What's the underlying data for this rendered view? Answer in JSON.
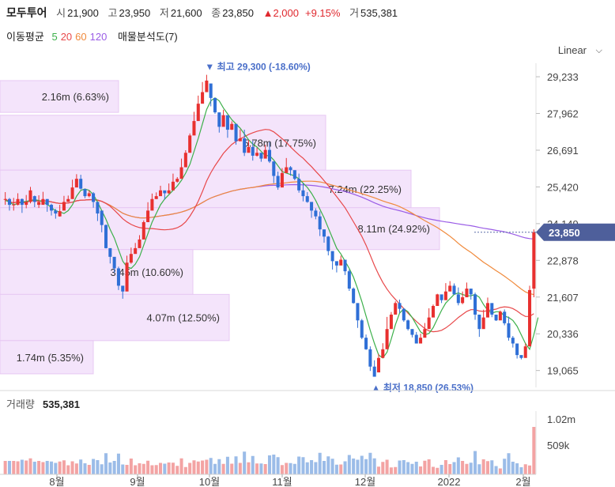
{
  "header": {
    "name": "모두투어",
    "open_label": "시",
    "open": "21,900",
    "high_label": "고",
    "high": "23,950",
    "low_label": "저",
    "low": "21,600",
    "close_label": "종",
    "close": "23,850",
    "change": "▲2,000",
    "change_pct": "+9.15%",
    "volume_label": "거",
    "volume": "535,381"
  },
  "indicators": {
    "label": "이동평균",
    "ma": [
      {
        "period": "5",
        "color": "#3cb04a"
      },
      {
        "period": "20",
        "color": "#e8484a"
      },
      {
        "period": "60",
        "color": "#f08a3c"
      },
      {
        "period": "120",
        "color": "#9a5ce6"
      }
    ],
    "profile_label": "매물분석도(7)"
  },
  "scale_mode": "Linear",
  "chart_data": {
    "type": "candlestick",
    "price_axis": {
      "ticks": [
        "29,233",
        "27,962",
        "26,691",
        "25,420",
        "24,149",
        "22,878",
        "21,607",
        "20,336",
        "19,065"
      ],
      "ylim": [
        18700,
        29700
      ]
    },
    "current_price": "23,850",
    "high_marker": "▼ 최고 29,300 (-18.60%)",
    "low_marker": "▲ 최저 18,850 (26.53%)",
    "volume_profile": [
      {
        "label": "2.16m (6.63%)",
        "price_top": 29100,
        "price_bottom": 28000
      },
      {
        "label": "5.78m (17.75%)",
        "price_top": 27900,
        "price_bottom": 26000
      },
      {
        "label": "7.24m (22.25%)",
        "price_top": 26000,
        "price_bottom": 24700
      },
      {
        "label": "8.11m (24.92%)",
        "price_top": 24700,
        "price_bottom": 23250
      },
      {
        "label": "3.45m (10.60%)",
        "price_top": 23250,
        "price_bottom": 21700
      },
      {
        "label": "4.07m (12.50%)",
        "price_top": 21700,
        "price_bottom": 20100
      },
      {
        "label": "1.74m (5.35%)",
        "price_top": 20100,
        "price_bottom": 18950
      }
    ],
    "volume_panel": {
      "title": "거래량",
      "value": "535,381",
      "ticks": [
        "1.02m",
        "509k"
      ]
    },
    "x_axis_labels": [
      "8월",
      "9월",
      "10월",
      "11월",
      "12월",
      "2022",
      "2월"
    ],
    "candles": [
      [
        25000,
        25000,
        24800,
        25240
      ],
      [
        25000,
        24800,
        24600,
        25040
      ],
      [
        24800,
        24810,
        24600,
        25040
      ],
      [
        24800,
        25000,
        24780,
        25200
      ],
      [
        25000,
        24800,
        24520,
        25020
      ],
      [
        24800,
        24900,
        24680,
        25140
      ],
      [
        24900,
        25300,
        24850,
        25420
      ],
      [
        25100,
        24900,
        24720,
        25120
      ],
      [
        24800,
        24900,
        24690,
        25130
      ],
      [
        24800,
        25000,
        24870,
        25250
      ],
      [
        25000,
        24800,
        24560,
        25000
      ],
      [
        24800,
        24600,
        24430,
        24840
      ],
      [
        24600,
        24500,
        24320,
        24660
      ],
      [
        24400,
        24580,
        24390,
        24800
      ],
      [
        24600,
        24900,
        24640,
        25110
      ],
      [
        24900,
        25000,
        24900,
        25120
      ],
      [
        25000,
        25400,
        25250,
        25670
      ],
      [
        25400,
        25700,
        25550,
        25860
      ],
      [
        25700,
        25360,
        25330,
        25840
      ],
      [
        25350,
        25100,
        25030,
        25350
      ],
      [
        25100,
        25200,
        25060,
        25300
      ],
      [
        25200,
        24900,
        24700,
        25240
      ],
      [
        24900,
        24500,
        24240,
        24720
      ],
      [
        24600,
        24100,
        23850,
        24120
      ],
      [
        24100,
        23300,
        23290,
        24120
      ],
      [
        23300,
        23000,
        22770,
        23130
      ],
      [
        23000,
        22600,
        22450,
        22890
      ],
      [
        22600,
        22000,
        21850,
        22660
      ],
      [
        22000,
        21800,
        21550,
        21810
      ],
      [
        21800,
        22800,
        22800,
        23040
      ],
      [
        22800,
        23100,
        22760,
        23320
      ],
      [
        23100,
        23300,
        23260,
        23480
      ],
      [
        23300,
        23600,
        23430,
        23750
      ],
      [
        23600,
        24200,
        23970,
        24260
      ],
      [
        24200,
        24600,
        24440,
        24890
      ],
      [
        24600,
        25000,
        24970,
        25190
      ],
      [
        25000,
        25100,
        25000,
        25230
      ],
      [
        25100,
        25300,
        25120,
        25460
      ],
      [
        25300,
        25200,
        24980,
        25280
      ],
      [
        25200,
        25300,
        25180,
        25540
      ],
      [
        25300,
        25600,
        25530,
        25880
      ],
      [
        25600,
        25700,
        25570,
        25760
      ],
      [
        25700,
        26100,
        25830,
        26400
      ],
      [
        26100,
        26600,
        26560,
        26690
      ],
      [
        26600,
        27200,
        26930,
        27270
      ],
      [
        27200,
        27700,
        27550,
        28020
      ],
      [
        27700,
        28300,
        28170,
        28580
      ],
      [
        28300,
        28700,
        28590,
        29050
      ],
      [
        28700,
        29100,
        28800,
        29300
      ],
      [
        29000,
        28500,
        28210,
        28800
      ],
      [
        28500,
        28000,
        27950,
        28240
      ],
      [
        28000,
        27500,
        27300,
        27830
      ],
      [
        27500,
        27900,
        27800,
        28090
      ],
      [
        27900,
        27400,
        27120,
        27770
      ],
      [
        27400,
        27600,
        27390,
        27690
      ],
      [
        27600,
        27000,
        26880,
        27550
      ],
      [
        27000,
        27100,
        27070,
        27410
      ],
      [
        27100,
        26600,
        26490,
        27400
      ],
      [
        26600,
        26800,
        26670,
        27040
      ],
      [
        26800,
        26500,
        26330,
        27020
      ],
      [
        26500,
        26600,
        26470,
        26780
      ],
      [
        26600,
        26400,
        26290,
        26600
      ],
      [
        26400,
        26700,
        26600,
        26880
      ],
      [
        26700,
        26300,
        26250,
        26970
      ],
      [
        26300,
        25800,
        25550,
        26310
      ],
      [
        25800,
        25400,
        25320,
        25950
      ],
      [
        25400,
        25900,
        25840,
        26070
      ],
      [
        25900,
        26100,
        26080,
        26420
      ],
      [
        26100,
        26000,
        25810,
        26140
      ],
      [
        26000,
        25700,
        25650,
        25940
      ],
      [
        25700,
        25300,
        25220,
        25880
      ],
      [
        25300,
        25100,
        24920,
        25550
      ],
      [
        25100,
        24900,
        24870,
        25240
      ],
      [
        24900,
        24600,
        24350,
        24830
      ],
      [
        24600,
        24400,
        24300,
        24680
      ],
      [
        24400,
        23950,
        23720,
        24570
      ],
      [
        23950,
        23700,
        23490,
        23930
      ],
      [
        23700,
        23200,
        23050,
        23720
      ],
      [
        23200,
        22850,
        22560,
        23110
      ],
      [
        22850,
        22700,
        22460,
        22710
      ],
      [
        22700,
        22900,
        22780,
        23040
      ],
      [
        22900,
        22500,
        22370,
        22790
      ],
      [
        22500,
        21900,
        21820,
        22560
      ],
      [
        21900,
        21400,
        21380,
        21940
      ],
      [
        21400,
        20800,
        20540,
        21040
      ],
      [
        20800,
        20200,
        20150,
        20850
      ],
      [
        20200,
        19800,
        19780,
        20310
      ],
      [
        19800,
        19200,
        19050,
        19900
      ],
      [
        19200,
        18850,
        18850,
        19420
      ],
      [
        19000,
        19500,
        19490,
        19640
      ],
      [
        19500,
        19800,
        19620,
        20010
      ],
      [
        19800,
        20500,
        20420,
        20920
      ],
      [
        20500,
        21000,
        20980,
        21090
      ],
      [
        21000,
        21400,
        21330,
        21460
      ],
      [
        21400,
        21200,
        21060,
        21520
      ],
      [
        21200,
        20800,
        20750,
        21230
      ],
      [
        20800,
        20500,
        20450,
        20830
      ],
      [
        20500,
        20300,
        20210,
        20500
      ],
      [
        20300,
        20000,
        20000,
        20400
      ],
      [
        20000,
        20200,
        20180,
        20340
      ],
      [
        20200,
        20500,
        20260,
        20710
      ],
      [
        20500,
        20900,
        20700,
        21220
      ],
      [
        20900,
        21300,
        21210,
        21350
      ],
      [
        21300,
        21700,
        21630,
        21720
      ],
      [
        21700,
        21500,
        21400,
        21640
      ],
      [
        21500,
        21800,
        21610,
        22090
      ],
      [
        21800,
        22000,
        21880,
        22160
      ],
      [
        22000,
        21700,
        21700,
        22080
      ],
      [
        21700,
        21400,
        21320,
        21940
      ],
      [
        21400,
        21600,
        21360,
        21800
      ],
      [
        21600,
        21900,
        21820,
        22110
      ],
      [
        21900,
        21700,
        21520,
        21870
      ],
      [
        21700,
        21000,
        20820,
        21760
      ],
      [
        21000,
        20500,
        20230,
        20500
      ],
      [
        20500,
        20900,
        20650,
        21170
      ],
      [
        20900,
        21400,
        21160,
        21590
      ],
      [
        21400,
        21000,
        20910,
        21380
      ],
      [
        21000,
        20800,
        20780,
        20960
      ],
      [
        20800,
        21100,
        21080,
        21140
      ],
      [
        21100,
        20700,
        20630,
        21180
      ],
      [
        20700,
        20200,
        20100,
        20930
      ],
      [
        20200,
        20000,
        19860,
        20260
      ],
      [
        20000,
        19600,
        19480,
        19800
      ],
      [
        19600,
        19500,
        19450,
        19570
      ],
      [
        19500,
        19900,
        19730,
        20000
      ],
      [
        19900,
        21850,
        21790,
        22000
      ],
      [
        21900,
        23850,
        21600,
        23950
      ]
    ],
    "ma": {
      "5": [
        24950,
        24900,
        24800,
        24850,
        24900,
        24920,
        24950,
        24980,
        24950,
        24900,
        24820,
        24700,
        24600,
        24550,
        24500,
        24600,
        24800,
        25100,
        25300,
        25350,
        25300,
        25150,
        24900,
        24600,
        24300,
        23950,
        23650,
        23250,
        22850,
        22650,
        22600,
        22750,
        23000,
        23400,
        23800,
        24200,
        24500,
        24800,
        25000,
        25150,
        25300,
        25450,
        25650,
        25900,
        26200,
        26650,
        27100,
        27600,
        28100,
        28400,
        28500,
        28400,
        28150,
        27950,
        27750,
        27600,
        27450,
        27250,
        27050,
        26900,
        26800,
        26650,
        26500,
        26500,
        26350,
        26150,
        25950,
        25900,
        25850,
        25800,
        25700,
        25550,
        25400,
        25200,
        24950,
        24650,
        24350,
        24000,
        23650,
        23300,
        23100,
        22850,
        22600,
        22300,
        21900,
        21450,
        20950,
        20450,
        20000,
        19600,
        19500,
        19700,
        20150,
        20650,
        21050,
        21200,
        21100,
        20900,
        20650,
        20400,
        20300,
        20350,
        20550,
        20850,
        21150,
        21400,
        21550,
        21700,
        21750,
        21700,
        21650,
        21650,
        21700,
        21600,
        21350,
        21150,
        21050,
        21100,
        21100,
        20950,
        20900,
        20800,
        20600,
        20300,
        20000,
        19800,
        20300,
        20900
      ]
    }
  }
}
